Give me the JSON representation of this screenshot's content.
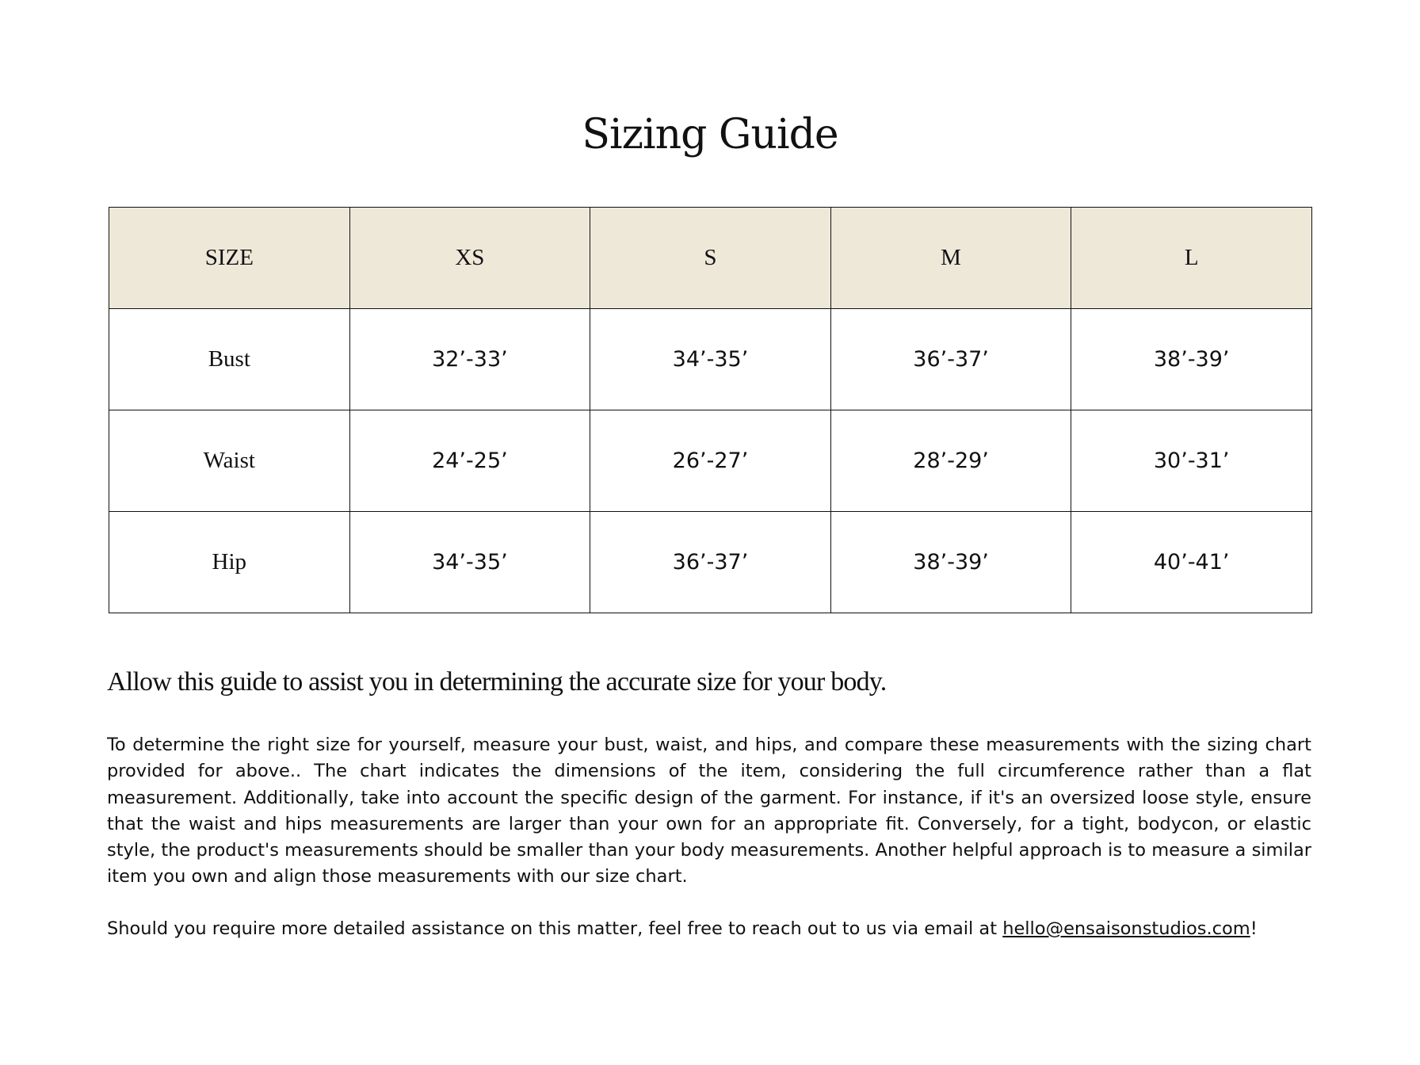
{
  "title": "Sizing Guide",
  "table": {
    "headers": [
      "SIZE",
      "XS",
      "S",
      "M",
      "L"
    ],
    "rows": [
      {
        "label": "Bust",
        "values": [
          "32’-33’",
          "34’-35’",
          "36’-37’",
          "38’-39’"
        ]
      },
      {
        "label": "Waist",
        "values": [
          "24’-25’",
          "26’-27’",
          "28’-29’",
          "30’-31’"
        ]
      },
      {
        "label": "Hip",
        "values": [
          "34’-35’",
          "36’-37’",
          "38’-39’",
          "40’-41’"
        ]
      }
    ],
    "header_bg": "#eee8d9"
  },
  "subtitle": "Allow this guide to assist you in determining the accurate size for your body.",
  "paragraph1": "To determine the right size for yourself, measure your bust, waist, and hips, and compare these measurements with the sizing chart provided for above.. The chart indicates the dimensions of the item, considering the full circumference rather than a flat measurement. Additionally, take into account the specific design of the garment. For instance, if it's an oversized loose style, ensure that the waist and hips measurements are larger than your own for an appropriate fit. Conversely, for a tight, bodycon, or elastic style, the product's measurements should be smaller than your body measurements. Another helpful approach is to measure a similar item you own and align those measurements with our size chart.",
  "paragraph2": {
    "text": "Should you require more detailed assistance on this matter, feel free to reach out to us via email at ",
    "email": "hello@ensaisonstudios.com",
    "suffix": "!"
  }
}
